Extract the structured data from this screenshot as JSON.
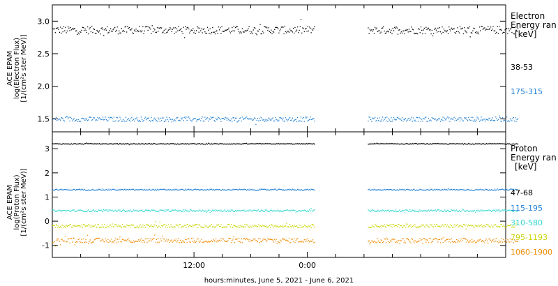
{
  "chart_data": [
    {
      "type": "scatter",
      "panel": "electron",
      "ylabel_lines": [
        "ACE EPAM",
        "log(Electron Flux)",
        "[1/(cm²s ster MeV)]"
      ],
      "yticks": [
        "1.5",
        "2.0",
        "2.5",
        "3.0"
      ],
      "ytick_values": [
        1.5,
        2.0,
        2.5,
        3.0
      ],
      "ylim": [
        1.3,
        3.25
      ],
      "legend_title_lines": [
        "Electron",
        "Energy ran",
        "[keV]"
      ],
      "series": [
        {
          "name": "38-53",
          "color": "#000000",
          "level": 2.87,
          "jitter": 0.06
        },
        {
          "name": "175-315",
          "color": "#1e7fd6",
          "level": 1.5,
          "jitter": 0.035
        }
      ]
    },
    {
      "type": "scatter",
      "panel": "proton",
      "ylabel_lines": [
        "ACE EPAM",
        "log(Proton Flux)",
        "[1/(cm²s ster MeV)]"
      ],
      "yticks": [
        "-1",
        "0",
        "1",
        "2",
        "3"
      ],
      "ytick_values": [
        -1,
        0,
        1,
        2,
        3
      ],
      "ylim": [
        -1.5,
        3.7
      ],
      "legend_title_lines": [
        "Proton",
        "Energy ran",
        "[keV]"
      ],
      "series": [
        {
          "name": "47-68",
          "color": "#000000",
          "level": 3.22,
          "jitter": 0.015
        },
        {
          "name": "115-195",
          "color": "#1e7fd6",
          "level": 1.32,
          "jitter": 0.025
        },
        {
          "name": "310-580",
          "color": "#2fd6d0",
          "level": 0.45,
          "jitter": 0.04
        },
        {
          "name": "795-1193",
          "color": "#c8d400",
          "level": -0.18,
          "jitter": 0.07
        },
        {
          "name": "1060-1900",
          "color": "#f08a00",
          "level": -0.78,
          "jitter": 0.1
        }
      ]
    }
  ],
  "x_axis": {
    "range_hours": [
      0,
      48
    ],
    "ticks": [
      {
        "label": "12:00",
        "hour": 15
      },
      {
        "label": "0:00",
        "hour": 27
      }
    ],
    "data_segments_hours": [
      [
        0,
        27.8
      ],
      [
        33.4,
        49.3
      ]
    ],
    "xlabel": "hours:minutes, June  5, 2021 - June  6, 2021"
  }
}
